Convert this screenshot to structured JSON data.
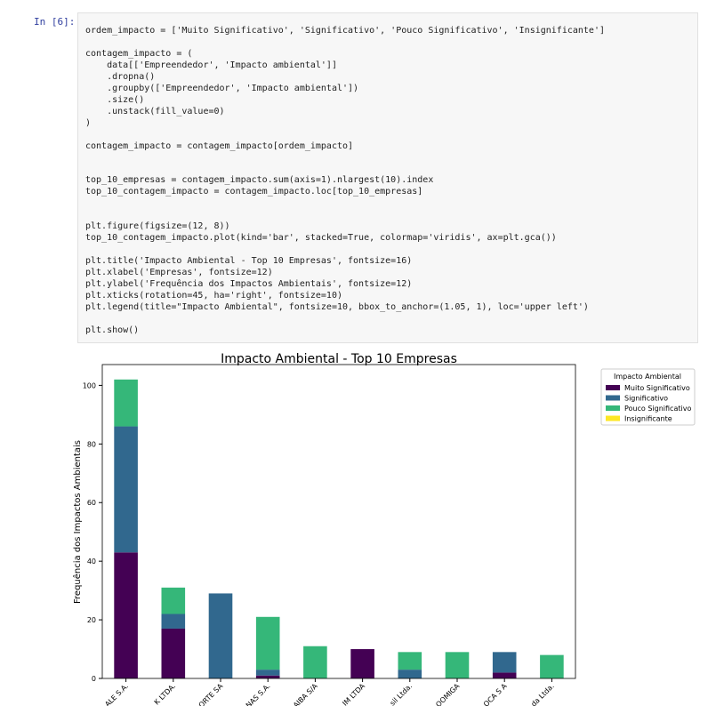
{
  "cell": {
    "prompt": "In [6]:",
    "code": "ordem_impacto = ['Muito Significativo', 'Significativo', 'Pouco Significativo', 'Insignificante']\n\ncontagem_impacto = (\n    data[['Empreendedor', 'Impacto ambiental']]\n    .dropna()\n    .groupby(['Empreendedor', 'Impacto ambiental'])\n    .size()\n    .unstack(fill_value=0)\n)\n\ncontagem_impacto = contagem_impacto[ordem_impacto]\n\n\ntop_10_empresas = contagem_impacto.sum(axis=1).nlargest(10).index\ntop_10_contagem_impacto = contagem_impacto.loc[top_10_empresas]\n\n\nplt.figure(figsize=(12, 8))\ntop_10_contagem_impacto.plot(kind='bar', stacked=True, colormap='viridis', ax=plt.gca())\n\nplt.title('Impacto Ambiental - Top 10 Empresas', fontsize=16)\nplt.xlabel('Empresas', fontsize=12)\nplt.ylabel('Frequência dos Impactos Ambientais', fontsize=12)\nplt.xticks(rotation=45, ha='right', fontsize=10)\nplt.legend(title=\"Impacto Ambiental\", fontsize=10, bbox_to_anchor=(1.05, 1), loc='upper left')\n\nplt.show()"
  },
  "chart_data": {
    "type": "stacked_bar",
    "title": "Impacto Ambiental - Top 10 Empresas",
    "y_label": "Frequência dos Impactos Ambientais",
    "legend_title": "Impacto Ambiental",
    "categories": [
      "ALE S.A.",
      "K LTDA.",
      "ORTE SA",
      "NAS S.A.",
      "AIBA S/A",
      "IM LTDA",
      "sil Ltda.",
      "OOMIGA",
      "OCA S A",
      "da Ltda."
    ],
    "series": [
      {
        "name": "Muito Significativo",
        "color": "#440154",
        "values": [
          43,
          17,
          0,
          1,
          0,
          10,
          0,
          0,
          2,
          0
        ]
      },
      {
        "name": "Significativo",
        "color": "#31688e",
        "values": [
          43,
          5,
          29,
          2,
          0,
          0,
          3,
          0,
          7,
          0
        ]
      },
      {
        "name": "Pouco Significativo",
        "color": "#35b779",
        "values": [
          16,
          9,
          0,
          18,
          11,
          0,
          6,
          9,
          0,
          8
        ]
      },
      {
        "name": "Insignificante",
        "color": "#fde725",
        "values": [
          0,
          0,
          0,
          0,
          0,
          0,
          0,
          0,
          0,
          0
        ]
      }
    ],
    "ylim": [
      0,
      107.1
    ],
    "yticks": [
      0,
      20,
      40,
      60,
      80,
      100
    ],
    "grid": false
  }
}
